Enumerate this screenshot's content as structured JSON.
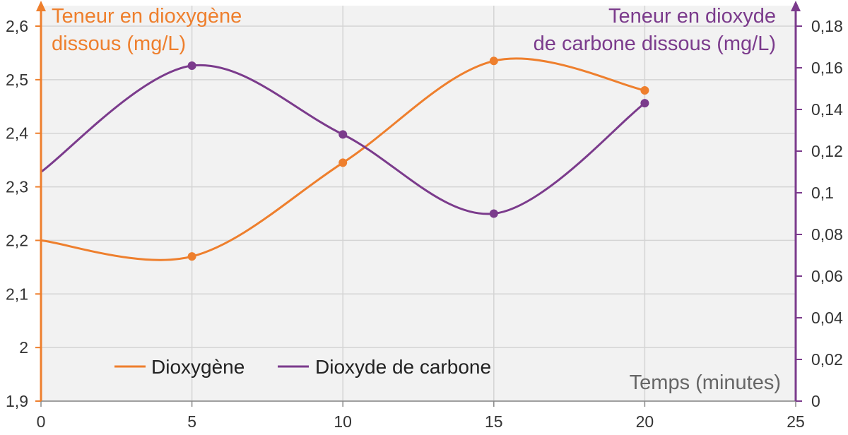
{
  "chart_data": {
    "type": "line",
    "xlabel": "Temps (minutes)",
    "ylabel_left_line1": "Teneur en dioxygène",
    "ylabel_left_line2": "dissous (mg/L)",
    "ylabel_right_line1": "Teneur en dioxyde",
    "ylabel_right_line2": "de carbone dissous (mg/L)",
    "xlim": [
      0,
      25
    ],
    "ylim_left": [
      1.9,
      2.6
    ],
    "ylim_right": [
      0,
      0.18
    ],
    "x_ticks": [
      "0",
      "5",
      "10",
      "15",
      "20",
      "25"
    ],
    "y_left_ticks": [
      "1,9",
      "2",
      "2,1",
      "2,2",
      "2,3",
      "2,4",
      "2,5",
      "2,6"
    ],
    "y_right_ticks": [
      "0",
      "0,02",
      "0,04",
      "0,06",
      "0,08",
      "0,1",
      "0,12",
      "0,14",
      "0,16",
      "0,18"
    ],
    "grid": true,
    "legend_position": "bottom-left",
    "series": [
      {
        "name": "Dioxygène",
        "axis": "left",
        "color": "#ee7f2d",
        "x": [
          0,
          5,
          10,
          15,
          20
        ],
        "y": [
          2.2,
          2.17,
          2.345,
          2.535,
          2.48
        ],
        "markers": [
          false,
          true,
          true,
          true,
          true
        ]
      },
      {
        "name": "Dioxyde de carbone",
        "axis": "right",
        "color": "#7b3b8c",
        "x": [
          0,
          5,
          10,
          15,
          20
        ],
        "y": [
          0.11,
          0.161,
          0.128,
          0.09,
          0.143
        ],
        "markers": [
          false,
          true,
          true,
          true,
          true
        ]
      }
    ]
  }
}
